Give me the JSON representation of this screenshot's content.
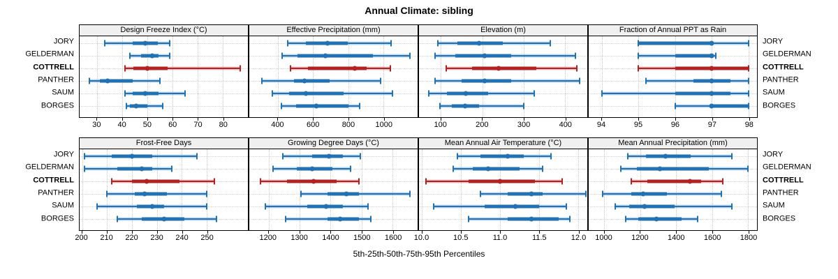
{
  "title": "Annual Climate: sibling",
  "caption": "5th-25th-50th-75th-95th Percentiles",
  "colors": {
    "blue": "#2171b5",
    "red": "#b22222",
    "band_alpha": 0.3,
    "grid": "#c9c9c9",
    "strip_bg": "#f0f0f0",
    "border": "#000000"
  },
  "chart_data": {
    "type": "percentile-interval-plot (dot = 50th, thick band = 25th-75th, thin whisker with end caps = 5th-95th)",
    "layout": "2 rows x 4 columns of panels, shared category rows",
    "row_labels": [
      "JORY",
      "GELDERMAN",
      "COTTRELL",
      "PANTHER",
      "SAUM",
      "BORGES"
    ],
    "highlight_row": "COTTRELL",
    "percentiles_order": [
      "p5",
      "p25",
      "p50",
      "p75",
      "p95"
    ],
    "panels": [
      {
        "title": "Design Freeze Index (°C)",
        "xlim": [
          23,
          90
        ],
        "ticks": [
          30,
          40,
          50,
          60,
          70,
          80
        ],
        "tick_labels": [
          "30",
          "40",
          "50",
          "60",
          "70",
          "80"
        ],
        "series": [
          [
            33,
            44,
            49,
            54,
            59
          ],
          [
            43,
            47.5,
            52,
            54.5,
            59
          ],
          [
            41,
            44.5,
            50,
            58,
            87
          ],
          [
            27,
            31,
            34,
            44,
            55
          ],
          [
            41,
            44,
            49,
            54.5,
            65
          ],
          [
            41.5,
            43,
            45.5,
            50,
            56
          ]
        ]
      },
      {
        "title": "Effective Precipitation (mm)",
        "xlim": [
          237,
          1194
        ],
        "ticks": [
          400,
          600,
          800,
          1000
        ],
        "tick_labels": [
          "400",
          "600",
          "800",
          "1000"
        ],
        "series": [
          [
            455,
            560,
            680,
            795,
            1045
          ],
          [
            425,
            510,
            670,
            940,
            1150
          ],
          [
            470,
            570,
            835,
            905,
            1040
          ],
          [
            307,
            490,
            550,
            695,
            985
          ],
          [
            368,
            465,
            560,
            775,
            1050
          ],
          [
            420,
            505,
            620,
            800,
            865
          ]
        ]
      },
      {
        "title": "Elevation (m)",
        "xlim": [
          47,
          454
        ],
        "ticks": [
          100,
          200,
          300,
          400
        ],
        "tick_labels": [
          "100",
          "200",
          "300",
          "400"
        ],
        "series": [
          [
            93,
            140,
            192,
            250,
            365
          ],
          [
            85,
            135,
            205,
            270,
            425
          ],
          [
            113,
            175,
            240,
            330,
            428
          ],
          [
            85,
            150,
            205,
            270,
            435
          ],
          [
            70,
            115,
            160,
            215,
            325
          ],
          [
            97,
            127,
            158,
            192,
            300
          ]
        ]
      },
      {
        "title": "Fraction of Annual PPT as Rain",
        "xlim": [
          93.64,
          98.23
        ],
        "ticks": [
          94,
          95,
          96,
          97,
          98
        ],
        "tick_labels": [
          "94",
          "95",
          "96",
          "97",
          "98"
        ],
        "series": [
          [
            95,
            95,
            97,
            97,
            98
          ],
          [
            95,
            96,
            97,
            97,
            97.1
          ],
          [
            95,
            96,
            97,
            98,
            98
          ],
          [
            95.2,
            96.5,
            97,
            97.5,
            98
          ],
          [
            94,
            96,
            97,
            97.5,
            98
          ],
          [
            96,
            97,
            97,
            98,
            98
          ]
        ]
      },
      {
        "title": "Frost-Free Days",
        "xlim": [
          199,
          266.5
        ],
        "ticks": [
          200,
          210,
          220,
          230,
          240,
          250
        ],
        "tick_labels": [
          "200",
          "210",
          "220",
          "230",
          "240",
          "250"
        ],
        "series": [
          [
            201,
            212,
            220,
            228,
            246
          ],
          [
            201,
            214,
            224,
            228,
            236
          ],
          [
            212,
            220,
            226,
            239,
            253
          ],
          [
            210,
            221,
            225,
            234,
            250
          ],
          [
            206,
            222,
            228,
            233,
            250
          ],
          [
            214,
            224,
            233,
            241,
            254
          ]
        ]
      },
      {
        "title": "Growing Degree Days (°C)",
        "xlim": [
          1138,
          1680
        ],
        "ticks": [
          1200,
          1300,
          1400,
          1500,
          1600
        ],
        "tick_labels": [
          "1200",
          "1300",
          "1400",
          "1500",
          "1600"
        ],
        "series": [
          [
            1245,
            1340,
            1395,
            1440,
            1495
          ],
          [
            1215,
            1290,
            1340,
            1405,
            1465
          ],
          [
            1175,
            1260,
            1345,
            1420,
            1490
          ],
          [
            1305,
            1390,
            1450,
            1490,
            1655
          ],
          [
            1190,
            1325,
            1385,
            1440,
            1520
          ],
          [
            1255,
            1390,
            1430,
            1490,
            1530
          ]
        ]
      },
      {
        "title": "Mean Annual Air Temperature (°C)",
        "xlim": [
          9.96,
          12.12
        ],
        "ticks": [
          10.0,
          10.5,
          11.0,
          11.5,
          12.0
        ],
        "tick_labels": [
          "10.0",
          "10.5",
          "11.0",
          "11.5",
          "12.0"
        ],
        "series": [
          [
            10.45,
            10.75,
            11.1,
            11.3,
            11.65
          ],
          [
            10.4,
            10.65,
            10.85,
            11.25,
            11.55
          ],
          [
            10.05,
            10.6,
            11.0,
            11.45,
            11.8
          ],
          [
            10.75,
            11.1,
            11.4,
            11.55,
            12.1
          ],
          [
            10.15,
            10.8,
            11.2,
            11.5,
            11.85
          ],
          [
            10.6,
            11.1,
            11.4,
            11.75,
            11.9
          ]
        ]
      },
      {
        "title": "Mean Annual Precipitation (mm)",
        "xlim": [
          913,
          1850
        ],
        "ticks": [
          1000,
          1200,
          1400,
          1600,
          1800
        ],
        "tick_labels": [
          "1000",
          "1200",
          "1400",
          "1600",
          "1800"
        ],
        "series": [
          [
            1130,
            1230,
            1340,
            1480,
            1710
          ],
          [
            1090,
            1180,
            1310,
            1580,
            1800
          ],
          [
            1150,
            1240,
            1475,
            1540,
            1660
          ],
          [
            990,
            1150,
            1215,
            1350,
            1650
          ],
          [
            1060,
            1140,
            1225,
            1390,
            1710
          ],
          [
            1120,
            1190,
            1290,
            1430,
            1520
          ]
        ]
      }
    ]
  }
}
